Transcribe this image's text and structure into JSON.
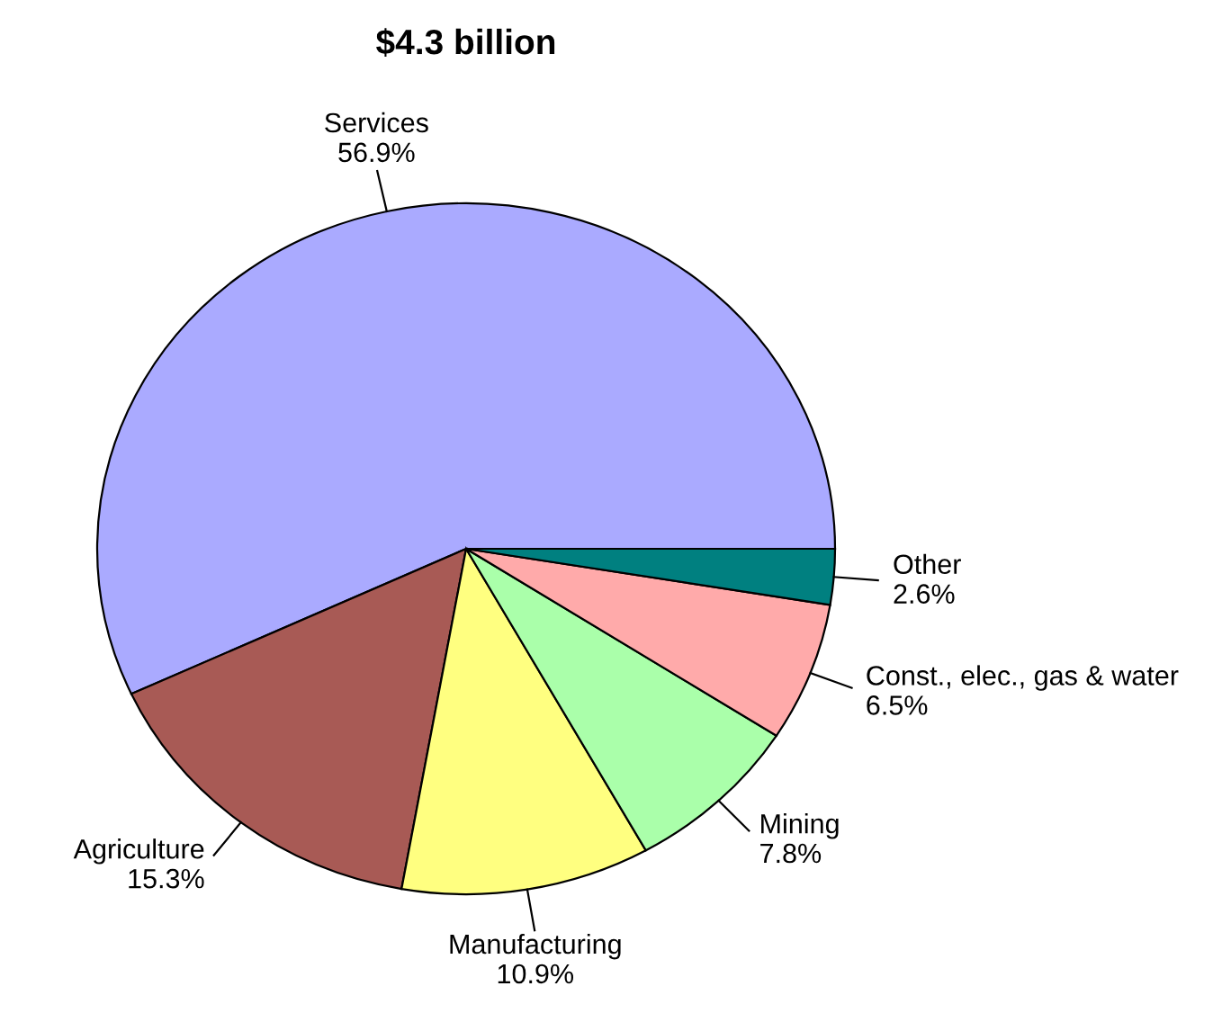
{
  "chart_data": {
    "type": "pie",
    "title": "$4.3 billion",
    "categories": [
      "Services",
      "Agriculture",
      "Manufacturing",
      "Mining",
      "Const., elec., gas & water",
      "Other"
    ],
    "values": [
      56.9,
      15.3,
      10.9,
      7.8,
      6.5,
      2.6
    ],
    "value_labels": [
      "56.9%",
      "15.3%",
      "10.9%",
      "7.8%",
      "6.5%",
      "2.6%"
    ],
    "colors": [
      "#aaaaff",
      "#a85a55",
      "#ffff80",
      "#aaffaa",
      "#ffaaaa",
      "#008080"
    ]
  }
}
